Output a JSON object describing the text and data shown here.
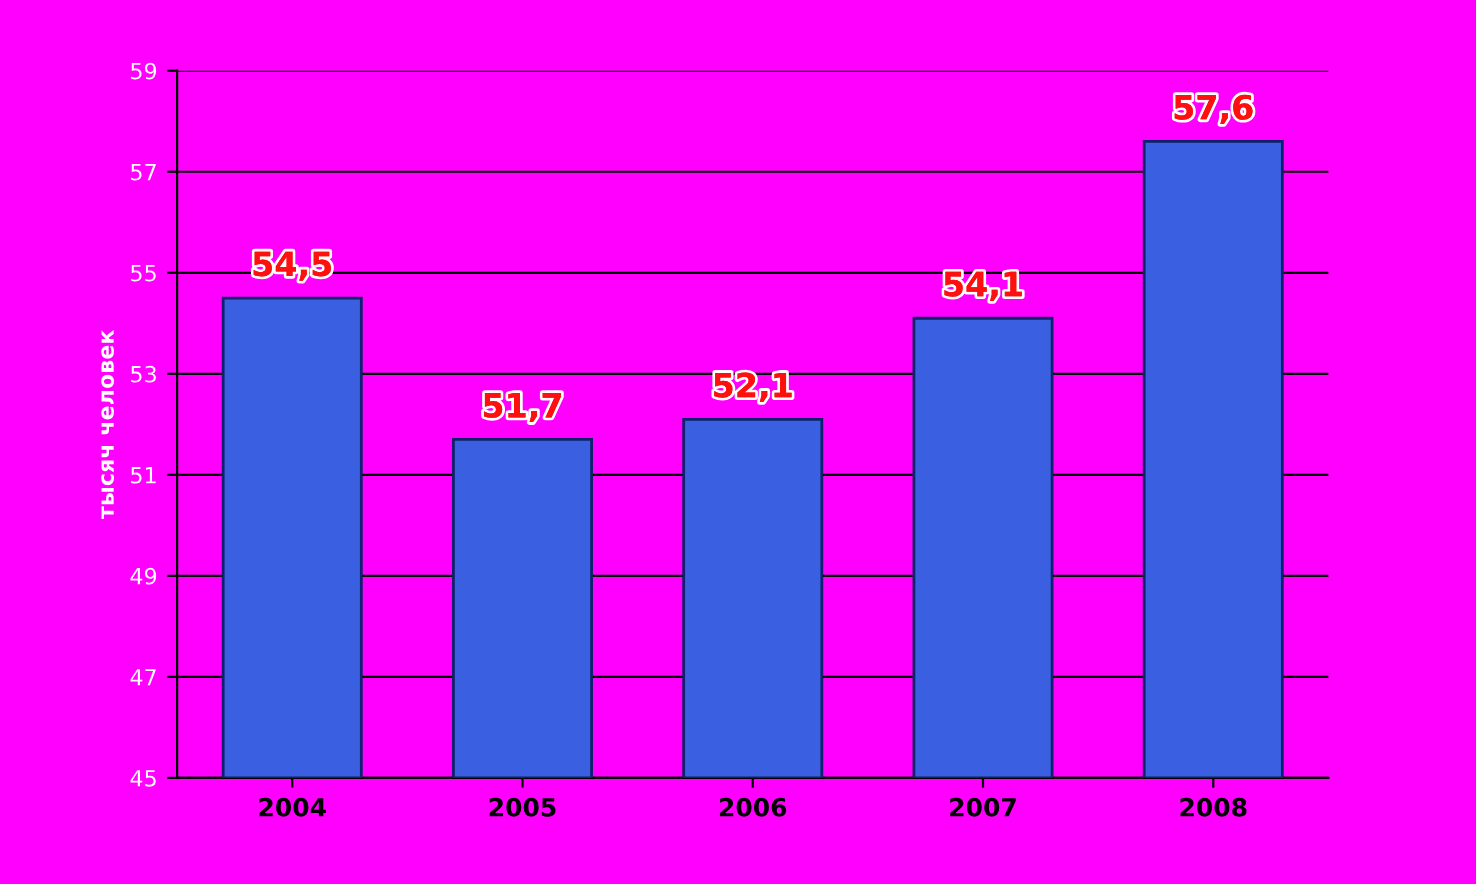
{
  "chart_data": {
    "type": "bar",
    "ylabel": "тысяч человек",
    "categories": [
      "2004",
      "2005",
      "2006",
      "2007",
      "2008"
    ],
    "values": [
      54.5,
      51.7,
      52.1,
      54.1,
      57.6
    ],
    "value_labels": [
      "54,5",
      "51,7",
      "52,1",
      "54,1",
      "57,6"
    ],
    "color": "#3a5fe0",
    "ylim": [
      45,
      59
    ],
    "yticks": [
      45,
      47,
      49,
      51,
      53,
      55,
      57,
      59
    ],
    "grid": "y"
  }
}
